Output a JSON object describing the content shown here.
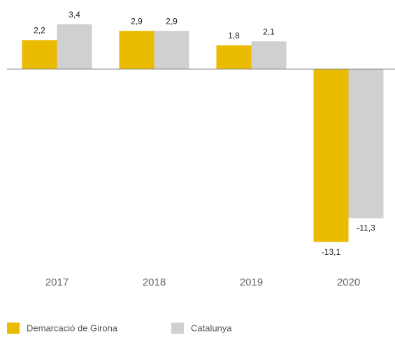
{
  "chart_data": {
    "type": "bar",
    "categories": [
      "2017",
      "2018",
      "2019",
      "2020"
    ],
    "series": [
      {
        "name": "Demarcació de Girona",
        "color": "#ebbb00",
        "values": [
          2.2,
          2.9,
          1.8,
          -13.1
        ],
        "value_labels": [
          "2,2",
          "2,9",
          "1,8",
          "-13,1"
        ]
      },
      {
        "name": "Catalunya",
        "color": "#d0d0d0",
        "values": [
          3.4,
          2.9,
          2.1,
          -11.3
        ],
        "value_labels": [
          "3,4",
          "2,9",
          "2,1",
          "-11,3"
        ]
      }
    ],
    "ylim": [
      -14,
      4
    ]
  }
}
